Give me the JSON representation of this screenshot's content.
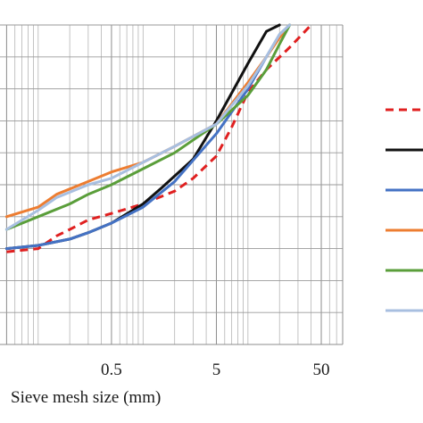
{
  "chart_data": {
    "type": "line",
    "title": "",
    "xlabel": "Sieve mesh size (mm)",
    "ylabel": "",
    "x_scale": "log",
    "xlim": [
      0.04,
      80
    ],
    "ylim": [
      0,
      100
    ],
    "x_tick_labels": [
      "0.5",
      "5",
      "50"
    ],
    "x_tick_values": [
      0.5,
      5,
      50
    ],
    "grid": true,
    "legend_position": "right",
    "series": [
      {
        "color": "#e02020",
        "dash": "dashed",
        "points": [
          [
            0.05,
            29
          ],
          [
            0.1,
            30
          ],
          [
            0.15,
            34
          ],
          [
            0.2,
            36
          ],
          [
            0.3,
            39
          ],
          [
            0.5,
            41
          ],
          [
            1,
            44
          ],
          [
            2,
            48
          ],
          [
            3,
            52
          ],
          [
            5,
            59
          ],
          [
            7,
            68
          ],
          [
            10,
            79
          ],
          [
            15,
            86
          ],
          [
            25,
            93
          ],
          [
            40,
            100
          ]
        ]
      },
      {
        "color": "#111111",
        "dash": "solid",
        "points": [
          [
            0.05,
            30
          ],
          [
            0.1,
            31
          ],
          [
            0.2,
            33
          ],
          [
            0.3,
            35
          ],
          [
            0.5,
            38
          ],
          [
            1,
            44
          ],
          [
            1.5,
            49
          ],
          [
            3,
            58
          ],
          [
            5,
            70
          ],
          [
            10,
            88
          ],
          [
            15,
            98
          ],
          [
            20,
            100
          ]
        ]
      },
      {
        "color": "#4472c4",
        "dash": "solid",
        "points": [
          [
            0.05,
            30
          ],
          [
            0.1,
            31
          ],
          [
            0.2,
            33
          ],
          [
            0.3,
            35
          ],
          [
            0.5,
            38
          ],
          [
            1,
            43
          ],
          [
            2,
            51
          ],
          [
            5,
            66
          ],
          [
            10,
            80
          ],
          [
            15,
            90
          ],
          [
            20,
            97
          ],
          [
            25,
            100
          ]
        ]
      },
      {
        "color": "#ed7d31",
        "dash": "solid",
        "points": [
          [
            0.05,
            40
          ],
          [
            0.1,
            43
          ],
          [
            0.15,
            47
          ],
          [
            0.3,
            51
          ],
          [
            0.5,
            54
          ],
          [
            1,
            57
          ],
          [
            2,
            62
          ],
          [
            5,
            69
          ],
          [
            10,
            82
          ],
          [
            15,
            90
          ],
          [
            20,
            96
          ],
          [
            25,
            100
          ]
        ]
      },
      {
        "color": "#5a9e3a",
        "dash": "solid",
        "points": [
          [
            0.05,
            36
          ],
          [
            0.1,
            40
          ],
          [
            0.2,
            44
          ],
          [
            0.3,
            47
          ],
          [
            0.5,
            50
          ],
          [
            1,
            55
          ],
          [
            2,
            60
          ],
          [
            5,
            69
          ],
          [
            10,
            78
          ],
          [
            15,
            86
          ],
          [
            20,
            94
          ],
          [
            25,
            100
          ]
        ]
      },
      {
        "color": "#a8bfe0",
        "dash": "solid",
        "points": [
          [
            0.05,
            36
          ],
          [
            0.1,
            42
          ],
          [
            0.15,
            46
          ],
          [
            0.3,
            50
          ],
          [
            0.5,
            52
          ],
          [
            1,
            57
          ],
          [
            2,
            62
          ],
          [
            5,
            69
          ],
          [
            10,
            81
          ],
          [
            15,
            90
          ],
          [
            20,
            97
          ],
          [
            25,
            100
          ]
        ]
      }
    ]
  }
}
